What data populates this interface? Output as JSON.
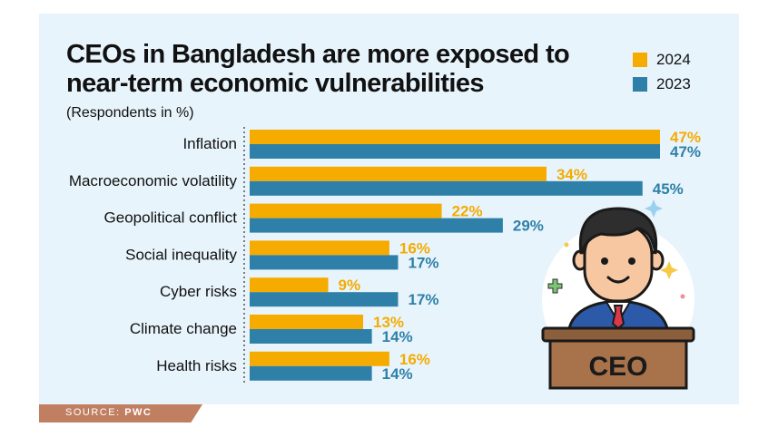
{
  "chart_data": {
    "type": "bar",
    "orientation": "horizontal",
    "title_lines": [
      "CEOs in Bangladesh are more exposed to",
      "near-term economic vulnerabilities"
    ],
    "subtitle": "(Respondents in %)",
    "categories": [
      "Inflation",
      "Macroeconomic volatility",
      "Geopolitical conflict",
      "Social inequality",
      "Cyber risks",
      "Climate change",
      "Health risks"
    ],
    "series": [
      {
        "name": "2024",
        "color": "#f5ab00",
        "values": [
          47,
          34,
          22,
          16,
          9,
          13,
          16
        ]
      },
      {
        "name": "2023",
        "color": "#2f80a8",
        "values": [
          47,
          45,
          29,
          17,
          17,
          14,
          14
        ]
      }
    ],
    "value_suffix": "%",
    "xlim": [
      0,
      47
    ],
    "legend_position": "top-right",
    "grid": false
  },
  "illustration": {
    "podium_text": "CEO"
  },
  "source": {
    "label": "SOURCE:",
    "value": "PWC"
  }
}
